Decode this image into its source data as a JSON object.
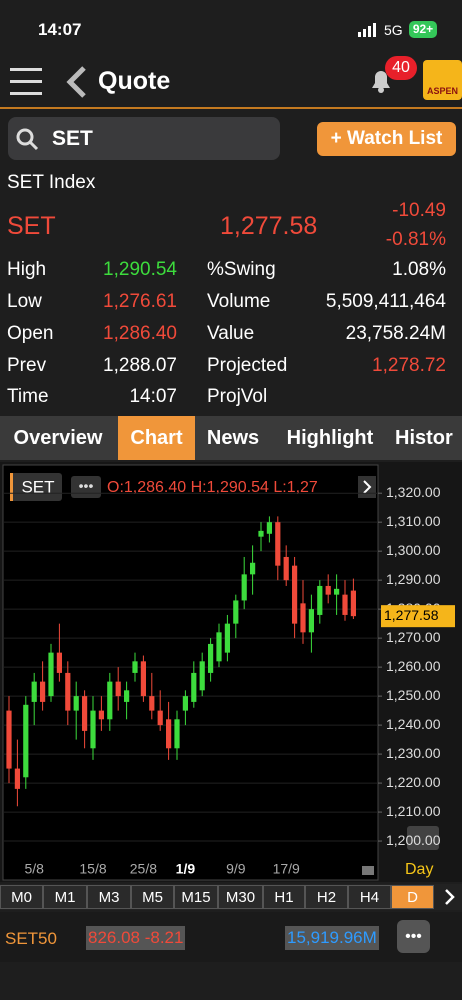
{
  "status_bar": {
    "time": "14:07",
    "network": "5G",
    "battery": "92+"
  },
  "header": {
    "title": "Quote",
    "badge": "40",
    "logo": "ASPEN"
  },
  "search": {
    "query": "SET",
    "button": "+ Watch List"
  },
  "quote": {
    "name": "SET Index",
    "symbol": "SET",
    "last": "1,277.58",
    "change": "-10.49",
    "change_pct": "-0.81%",
    "rows": [
      {
        "label": "High",
        "value": "1,290.54",
        "label2": "%Swing",
        "value2": "1.08%"
      },
      {
        "label": "Low",
        "value": "1,276.61",
        "label2": "Volume",
        "value2": "5,509,411,464"
      },
      {
        "label": "Open",
        "value": "1,286.40",
        "label2": "Value",
        "value2": "23,758.24M"
      },
      {
        "label": "Prev",
        "value": "1,288.07",
        "label2": "Projected",
        "value2": "1,278.72"
      },
      {
        "label": "Time",
        "value": "14:07",
        "label2": "ProjVol"
      }
    ]
  },
  "tabs": [
    "Overview",
    "Chart",
    "News",
    "Highlight",
    "Histor"
  ],
  "chart_data": {
    "type": "candlestick",
    "symbol": "SET",
    "ohl_text": "O:1,286.40 H:1,290.54 L:1,27",
    "price_tag": "1,277.58",
    "period": "Day",
    "up_color": "#3ddc3d",
    "down_color": "#f04a3a",
    "grid": true,
    "categories": [
      null,
      null,
      null,
      "5/8",
      null,
      null,
      null,
      null,
      null,
      null,
      "15/8",
      null,
      null,
      null,
      null,
      null,
      "25/8",
      null,
      null,
      null,
      null,
      "1/9",
      null,
      null,
      null,
      null,
      null,
      "9/9",
      null,
      null,
      null,
      null,
      null,
      "17/9",
      null,
      null,
      null,
      null,
      null,
      null,
      null,
      null
    ],
    "candles": [
      {
        "open": 1245,
        "high": 1250,
        "low": 1220,
        "close": 1225
      },
      {
        "open": 1225,
        "high": 1235,
        "low": 1212,
        "close": 1218
      },
      {
        "open": 1222,
        "high": 1250,
        "low": 1218,
        "close": 1247
      },
      {
        "open": 1248,
        "high": 1258,
        "low": 1240,
        "close": 1255
      },
      {
        "open": 1255,
        "high": 1262,
        "low": 1245,
        "close": 1248
      },
      {
        "open": 1250,
        "high": 1268,
        "low": 1248,
        "close": 1265
      },
      {
        "open": 1265,
        "high": 1275,
        "low": 1255,
        "close": 1258
      },
      {
        "open": 1258,
        "high": 1262,
        "low": 1240,
        "close": 1245
      },
      {
        "open": 1245,
        "high": 1255,
        "low": 1235,
        "close": 1250
      },
      {
        "open": 1250,
        "high": 1252,
        "low": 1232,
        "close": 1238
      },
      {
        "open": 1232,
        "high": 1250,
        "low": 1228,
        "close": 1245
      },
      {
        "open": 1245,
        "high": 1250,
        "low": 1238,
        "close": 1242
      },
      {
        "open": 1242,
        "high": 1258,
        "low": 1238,
        "close": 1255
      },
      {
        "open": 1255,
        "high": 1260,
        "low": 1245,
        "close": 1250
      },
      {
        "open": 1248,
        "high": 1255,
        "low": 1242,
        "close": 1252
      },
      {
        "open": 1258,
        "high": 1265,
        "low": 1255,
        "close": 1262
      },
      {
        "open": 1262,
        "high": 1264,
        "low": 1248,
        "close": 1250
      },
      {
        "open": 1250,
        "high": 1258,
        "low": 1242,
        "close": 1245
      },
      {
        "open": 1245,
        "high": 1252,
        "low": 1238,
        "close": 1240
      },
      {
        "open": 1242,
        "high": 1248,
        "low": 1228,
        "close": 1232
      },
      {
        "open": 1232,
        "high": 1245,
        "low": 1228,
        "close": 1242
      },
      {
        "open": 1245,
        "high": 1252,
        "low": 1240,
        "close": 1250
      },
      {
        "open": 1248,
        "high": 1262,
        "low": 1246,
        "close": 1258
      },
      {
        "open": 1252,
        "high": 1265,
        "low": 1250,
        "close": 1262
      },
      {
        "open": 1258,
        "high": 1270,
        "low": 1255,
        "close": 1268
      },
      {
        "open": 1262,
        "high": 1275,
        "low": 1260,
        "close": 1272
      },
      {
        "open": 1265,
        "high": 1278,
        "low": 1262,
        "close": 1275
      },
      {
        "open": 1275,
        "high": 1285,
        "low": 1270,
        "close": 1283
      },
      {
        "open": 1283,
        "high": 1298,
        "low": 1280,
        "close": 1292
      },
      {
        "open": 1292,
        "high": 1302,
        "low": 1285,
        "close": 1296
      },
      {
        "open": 1305,
        "high": 1310,
        "low": 1300,
        "close": 1307
      },
      {
        "open": 1306,
        "high": 1312,
        "low": 1303,
        "close": 1310
      },
      {
        "open": 1310,
        "high": 1312,
        "low": 1290,
        "close": 1295
      },
      {
        "open": 1298,
        "high": 1302,
        "low": 1288,
        "close": 1290
      },
      {
        "open": 1295,
        "high": 1298,
        "low": 1270,
        "close": 1275
      },
      {
        "open": 1282,
        "high": 1290,
        "low": 1268,
        "close": 1272
      },
      {
        "open": 1272,
        "high": 1285,
        "low": 1265,
        "close": 1280
      },
      {
        "open": 1278,
        "high": 1290,
        "low": 1275,
        "close": 1288
      },
      {
        "open": 1288,
        "high": 1292,
        "low": 1282,
        "close": 1285
      },
      {
        "open": 1285,
        "high": 1292,
        "low": 1278,
        "close": 1287
      },
      {
        "open": 1285,
        "high": 1290,
        "low": 1276,
        "close": 1278
      },
      {
        "open": 1286.4,
        "high": 1290.54,
        "low": 1276.61,
        "close": 1277.58
      }
    ],
    "ylim": [
      1194.5,
      1328
    ],
    "yticks": [
      {
        "value": 1200,
        "label": "1,200.00"
      },
      {
        "value": 1210,
        "label": "1,210.00"
      },
      {
        "value": 1220,
        "label": "1,220.00"
      },
      {
        "value": 1230,
        "label": "1,230.00"
      },
      {
        "value": 1240,
        "label": "1,240.00"
      },
      {
        "value": 1250,
        "label": "1,250.00"
      },
      {
        "value": 1260,
        "label": "1,260.00"
      },
      {
        "value": 1270,
        "label": "1,270.00"
      },
      {
        "value": 1280,
        "label": "1,280.00"
      },
      {
        "value": 1290,
        "label": "1,290.00"
      },
      {
        "value": 1300,
        "label": "1,300.00"
      },
      {
        "value": 1310,
        "label": "1,310.00"
      },
      {
        "value": 1320,
        "label": "1,320.00"
      }
    ]
  },
  "timeframes": [
    "M0",
    "M1",
    "M3",
    "M5",
    "M15",
    "M30",
    "H1",
    "H2",
    "H4",
    "D"
  ],
  "ticker": {
    "symbol": "SET50",
    "price": "826.08 -8.21",
    "value": "15,919.96M"
  }
}
